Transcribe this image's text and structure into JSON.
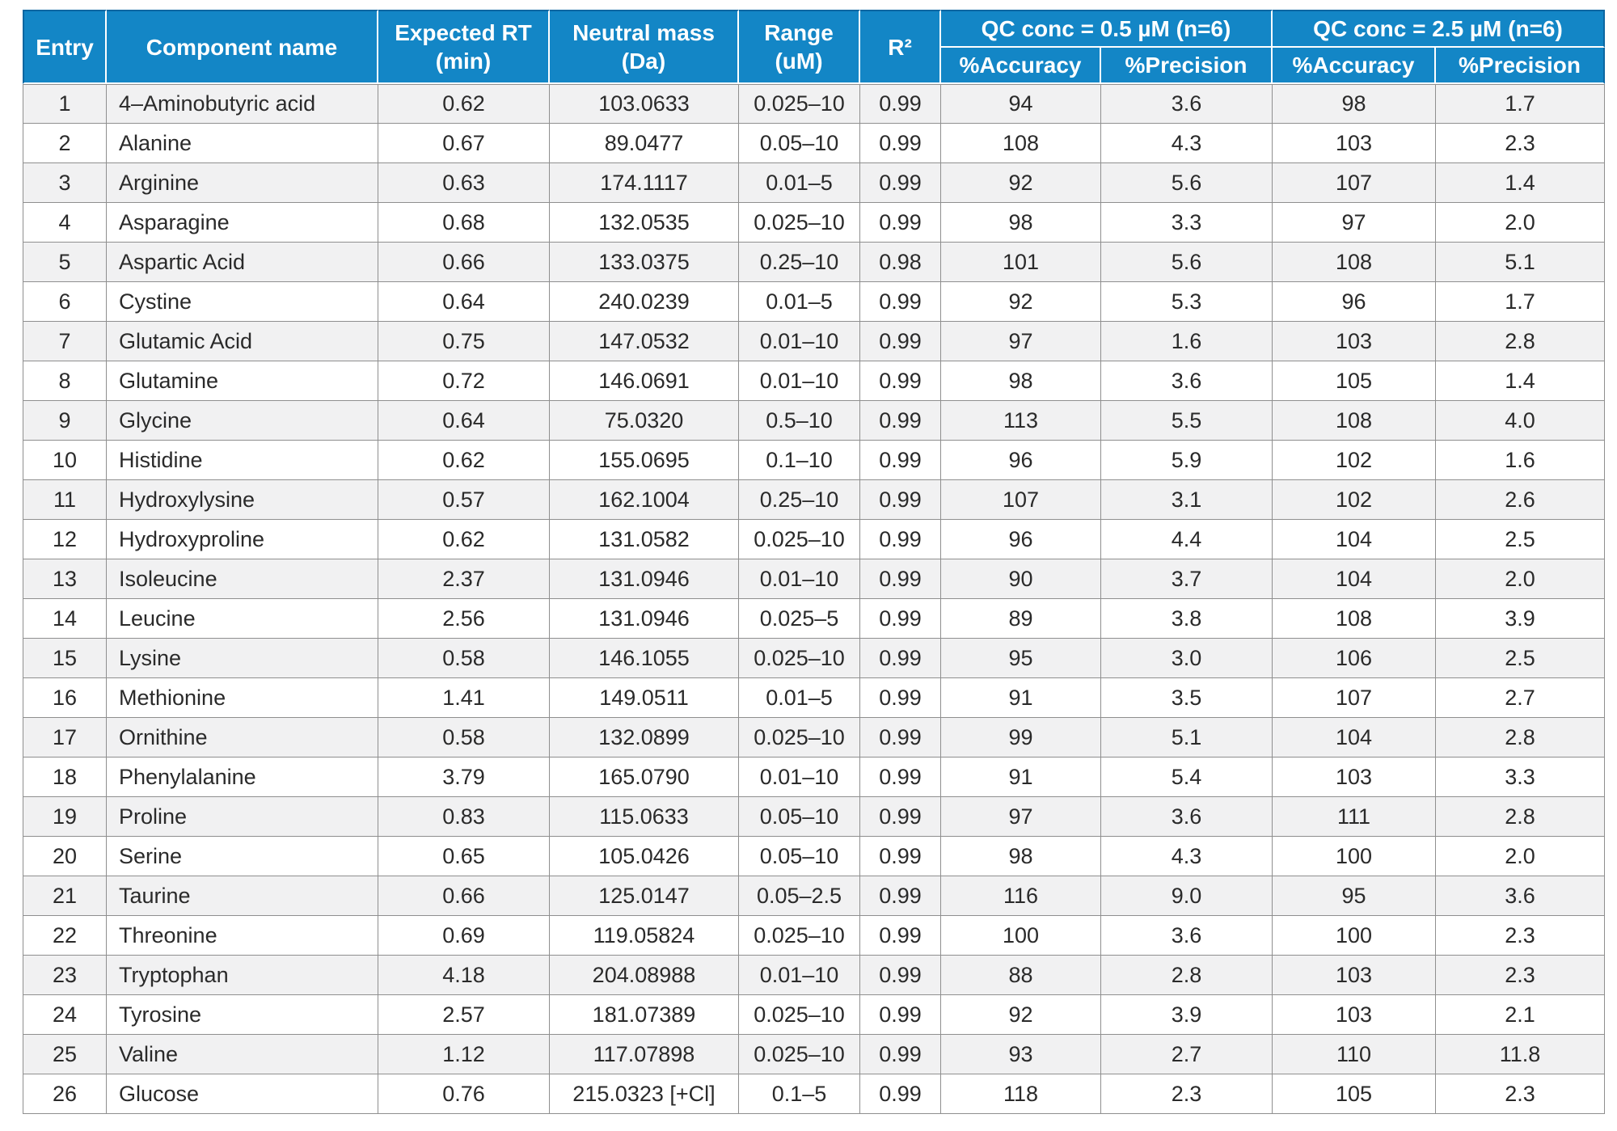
{
  "chart_data": {
    "type": "table",
    "title": "",
    "columns": [
      "Entry",
      "Component name",
      "Expected RT (min)",
      "Neutral mass (Da)",
      "Range (uM)",
      "R²",
      "QC conc = 0.5 µM (n=6) %Accuracy",
      "QC conc = 0.5 µM (n=6) %Precision",
      "QC conc = 2.5 µM (n=6) %Accuracy",
      "QC conc = 2.5 µM (n=6) %Precision"
    ],
    "rows": [
      [
        "1",
        "4–Aminobutyric acid",
        "0.62",
        "103.0633",
        "0.025–10",
        "0.99",
        "94",
        "3.6",
        "98",
        "1.7"
      ],
      [
        "2",
        "Alanine",
        "0.67",
        "89.0477",
        "0.05–10",
        "0.99",
        "108",
        "4.3",
        "103",
        "2.3"
      ],
      [
        "3",
        "Arginine",
        "0.63",
        "174.1117",
        "0.01–5",
        "0.99",
        "92",
        "5.6",
        "107",
        "1.4"
      ],
      [
        "4",
        "Asparagine",
        "0.68",
        "132.0535",
        "0.025–10",
        "0.99",
        "98",
        "3.3",
        "97",
        "2.0"
      ],
      [
        "5",
        "Aspartic Acid",
        "0.66",
        "133.0375",
        "0.25–10",
        "0.98",
        "101",
        "5.6",
        "108",
        "5.1"
      ],
      [
        "6",
        "Cystine",
        "0.64",
        "240.0239",
        "0.01–5",
        "0.99",
        "92",
        "5.3",
        "96",
        "1.7"
      ],
      [
        "7",
        "Glutamic Acid",
        "0.75",
        "147.0532",
        "0.01–10",
        "0.99",
        "97",
        "1.6",
        "103",
        "2.8"
      ],
      [
        "8",
        "Glutamine",
        "0.72",
        "146.0691",
        "0.01–10",
        "0.99",
        "98",
        "3.6",
        "105",
        "1.4"
      ],
      [
        "9",
        "Glycine",
        "0.64",
        "75.0320",
        "0.5–10",
        "0.99",
        "113",
        "5.5",
        "108",
        "4.0"
      ],
      [
        "10",
        "Histidine",
        "0.62",
        "155.0695",
        "0.1–10",
        "0.99",
        "96",
        "5.9",
        "102",
        "1.6"
      ],
      [
        "11",
        "Hydroxylysine",
        "0.57",
        "162.1004",
        "0.25–10",
        "0.99",
        "107",
        "3.1",
        "102",
        "2.6"
      ],
      [
        "12",
        "Hydroxyproline",
        "0.62",
        "131.0582",
        "0.025–10",
        "0.99",
        "96",
        "4.4",
        "104",
        "2.5"
      ],
      [
        "13",
        "Isoleucine",
        "2.37",
        "131.0946",
        "0.01–10",
        "0.99",
        "90",
        "3.7",
        "104",
        "2.0"
      ],
      [
        "14",
        "Leucine",
        "2.56",
        "131.0946",
        "0.025–5",
        "0.99",
        "89",
        "3.8",
        "108",
        "3.9"
      ],
      [
        "15",
        "Lysine",
        "0.58",
        "146.1055",
        "0.025–10",
        "0.99",
        "95",
        "3.0",
        "106",
        "2.5"
      ],
      [
        "16",
        "Methionine",
        "1.41",
        "149.0511",
        "0.01–5",
        "0.99",
        "91",
        "3.5",
        "107",
        "2.7"
      ],
      [
        "17",
        "Ornithine",
        "0.58",
        "132.0899",
        "0.025–10",
        "0.99",
        "99",
        "5.1",
        "104",
        "2.8"
      ],
      [
        "18",
        "Phenylalanine",
        "3.79",
        "165.0790",
        "0.01–10",
        "0.99",
        "91",
        "5.4",
        "103",
        "3.3"
      ],
      [
        "19",
        "Proline",
        "0.83",
        "115.0633",
        "0.05–10",
        "0.99",
        "97",
        "3.6",
        "111",
        "2.8"
      ],
      [
        "20",
        "Serine",
        "0.65",
        "105.0426",
        "0.05–10",
        "0.99",
        "98",
        "4.3",
        "100",
        "2.0"
      ],
      [
        "21",
        "Taurine",
        "0.66",
        "125.0147",
        "0.05–2.5",
        "0.99",
        "116",
        "9.0",
        "95",
        "3.6"
      ],
      [
        "22",
        "Threonine",
        "0.69",
        "119.05824",
        "0.025–10",
        "0.99",
        "100",
        "3.6",
        "100",
        "2.3"
      ],
      [
        "23",
        "Tryptophan",
        "4.18",
        "204.08988",
        "0.01–10",
        "0.99",
        "88",
        "2.8",
        "103",
        "2.3"
      ],
      [
        "24",
        "Tyrosine",
        "2.57",
        "181.07389",
        "0.025–10",
        "0.99",
        "92",
        "3.9",
        "103",
        "2.1"
      ],
      [
        "25",
        "Valine",
        "1.12",
        "117.07898",
        "0.025–10",
        "0.99",
        "93",
        "2.7",
        "110",
        "11.8"
      ],
      [
        "26",
        "Glucose",
        "0.76",
        "215.0323 [+Cl]",
        "0.1–5",
        "0.99",
        "118",
        "2.3",
        "105",
        "2.3"
      ]
    ]
  },
  "header": {
    "entry": "Entry",
    "component_name": "Component name",
    "expected_rt_line1": "Expected RT",
    "expected_rt_line2": "(min)",
    "neutral_mass_line1": "Neutral mass",
    "neutral_mass_line2": "(Da)",
    "range_line1": "Range",
    "range_line2": "(uM)",
    "r2": "R²",
    "qc_group_05": "QC conc = 0.5 µM (n=6)",
    "qc_group_25": "QC conc = 2.5 µM (n=6)",
    "accuracy": "%Accuracy",
    "precision": "%Precision"
  },
  "colors": {
    "header_bg": "#1386c6",
    "header_border": "#0c66a1",
    "header_text": "#ffffff",
    "row_alt_bg": "#f1f1f2",
    "grid_line": "#8f8f8f",
    "body_text": "#2a2a2a"
  }
}
